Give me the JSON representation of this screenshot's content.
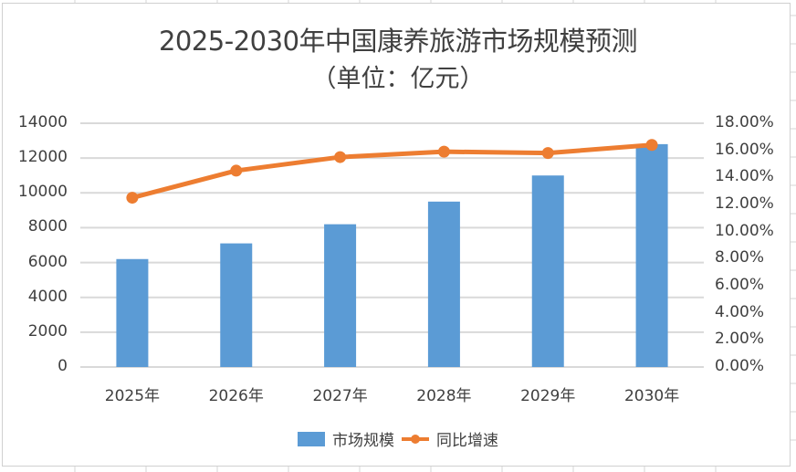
{
  "title": {
    "main": "2025-2030年中国康养旅游市场规模预测",
    "sub": "（单位：亿元）"
  },
  "colors": {
    "bar": "#5b9bd5",
    "line": "#ed7d31",
    "grid": "#d9d9d9",
    "text": "#404040"
  },
  "axes": {
    "left_ticks": [
      "0",
      "2000",
      "4000",
      "6000",
      "8000",
      "10000",
      "12000",
      "14000"
    ],
    "right_ticks": [
      "0.00%",
      "2.00%",
      "4.00%",
      "6.00%",
      "8.00%",
      "10.00%",
      "12.00%",
      "14.00%",
      "16.00%",
      "18.00%"
    ],
    "x_ticks": [
      "2025年",
      "2026年",
      "2027年",
      "2028年",
      "2029年",
      "2030年"
    ]
  },
  "legend": {
    "bar_label": "市场规模",
    "line_label": "同比增速"
  },
  "chart_data": {
    "type": "bar",
    "title": "2025-2030年中国康养旅游市场规模预测（单位：亿元）",
    "categories": [
      "2025年",
      "2026年",
      "2027年",
      "2028年",
      "2029年",
      "2030年"
    ],
    "series": [
      {
        "name": "市场规模",
        "type": "bar",
        "axis": "left",
        "values": [
          6200,
          7100,
          8200,
          9500,
          11000,
          12800
        ]
      },
      {
        "name": "同比增速",
        "type": "line",
        "axis": "right",
        "values": [
          12.5,
          14.5,
          15.5,
          15.9,
          15.8,
          16.4
        ],
        "unit": "%"
      }
    ],
    "xlabel": "",
    "ylabel": "",
    "ylim": [
      0,
      14000
    ],
    "y2lim": [
      0,
      18
    ],
    "grid": true,
    "legend_position": "bottom"
  }
}
